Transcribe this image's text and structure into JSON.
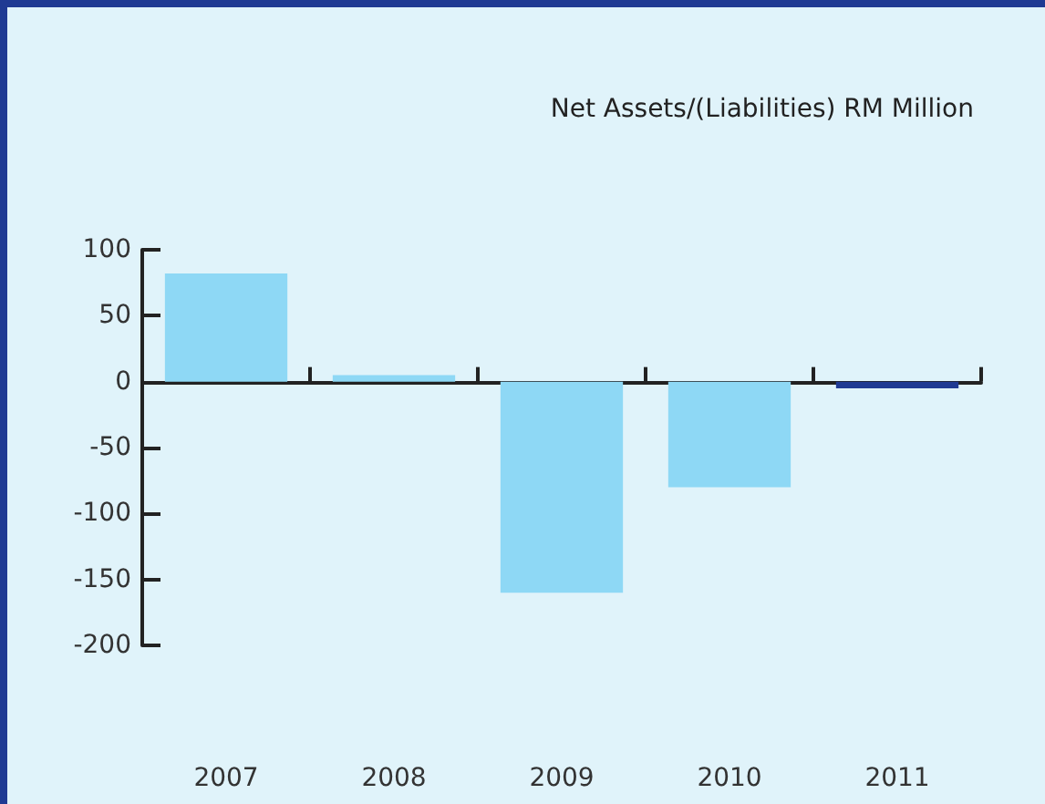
{
  "chart_data": {
    "type": "bar",
    "title": "Net Assets/(Liabilities) RM Million",
    "categories": [
      "2007",
      "2008",
      "2009",
      "2010",
      "2011"
    ],
    "values": [
      82,
      5,
      -160,
      -80,
      -5
    ],
    "colors": [
      "#8ed8f5",
      "#8ed8f5",
      "#8ed8f5",
      "#8ed8f5",
      "#1f3a93"
    ],
    "ylim": [
      -200,
      100
    ],
    "yticks": [
      -200,
      -150,
      -100,
      -50,
      0,
      50,
      100
    ]
  }
}
